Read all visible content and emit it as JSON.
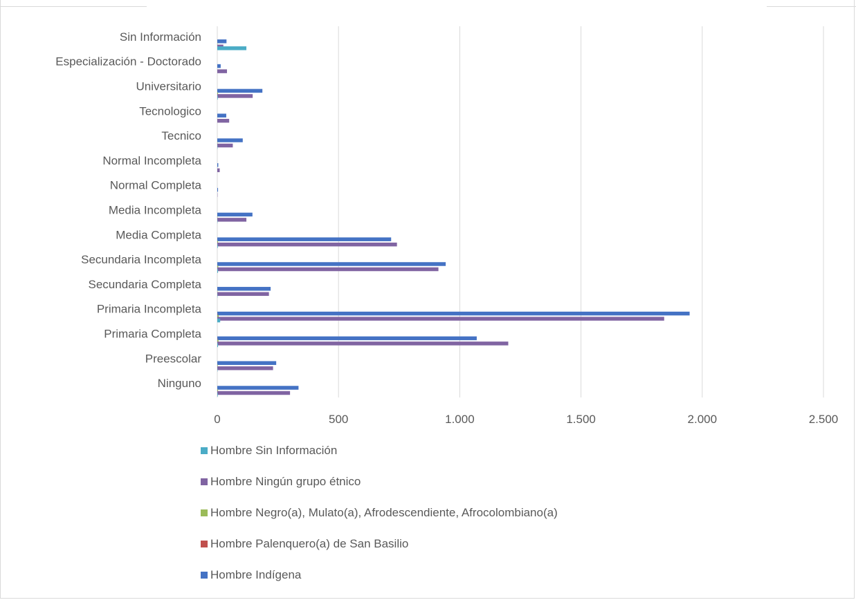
{
  "chart_data": {
    "type": "bar",
    "orientation": "horizontal",
    "categories": [
      "Ninguno",
      "Preescolar",
      "Primaria Completa",
      "Primaria Incompleta",
      "Secundaria Completa",
      "Secundaria Incompleta",
      "Media Completa",
      "Media Incompleta",
      "Normal Completa",
      "Normal Incompleta",
      "Tecnico",
      "Tecnologico",
      "Universitario",
      "Especialización - Doctorado",
      "Sin Información"
    ],
    "series": [
      {
        "name": "Hombre Indígena",
        "color": "#4472c4",
        "values": [
          335,
          243,
          1070,
          1948,
          220,
          942,
          717,
          145,
          3,
          4,
          105,
          37,
          186,
          14,
          38
        ]
      },
      {
        "name": "Hombre Palenquero(a) de San Basilio",
        "color": "#c0504d",
        "values": [
          0,
          0,
          1,
          1,
          0,
          0,
          0,
          0,
          0,
          0,
          0,
          0,
          0,
          0,
          0
        ]
      },
      {
        "name": "Hombre Negro(a), Mulato(a), Afrodescendiente, Afrocolombiano(a)",
        "color": "#9bbb59",
        "values": [
          3,
          2,
          5,
          6,
          1,
          4,
          3,
          1,
          0,
          0,
          1,
          0,
          3,
          0,
          1
        ]
      },
      {
        "name": "Hombre Ningún grupo étnico",
        "color": "#8064a2",
        "values": [
          300,
          230,
          1200,
          1843,
          213,
          912,
          741,
          120,
          1,
          10,
          64,
          49,
          146,
          40,
          25
        ]
      },
      {
        "name": "Hombre Sin Información",
        "color": "#4bacc6",
        "values": [
          2,
          1,
          3,
          12,
          1,
          3,
          2,
          1,
          0,
          0,
          1,
          0,
          2,
          0,
          120
        ]
      }
    ],
    "xticks": [
      "0",
      "500",
      "1.000",
      "1.500",
      "2.000",
      "2.500"
    ],
    "xlim": [
      0,
      2500
    ],
    "grid": true,
    "legend_position": "bottom"
  }
}
